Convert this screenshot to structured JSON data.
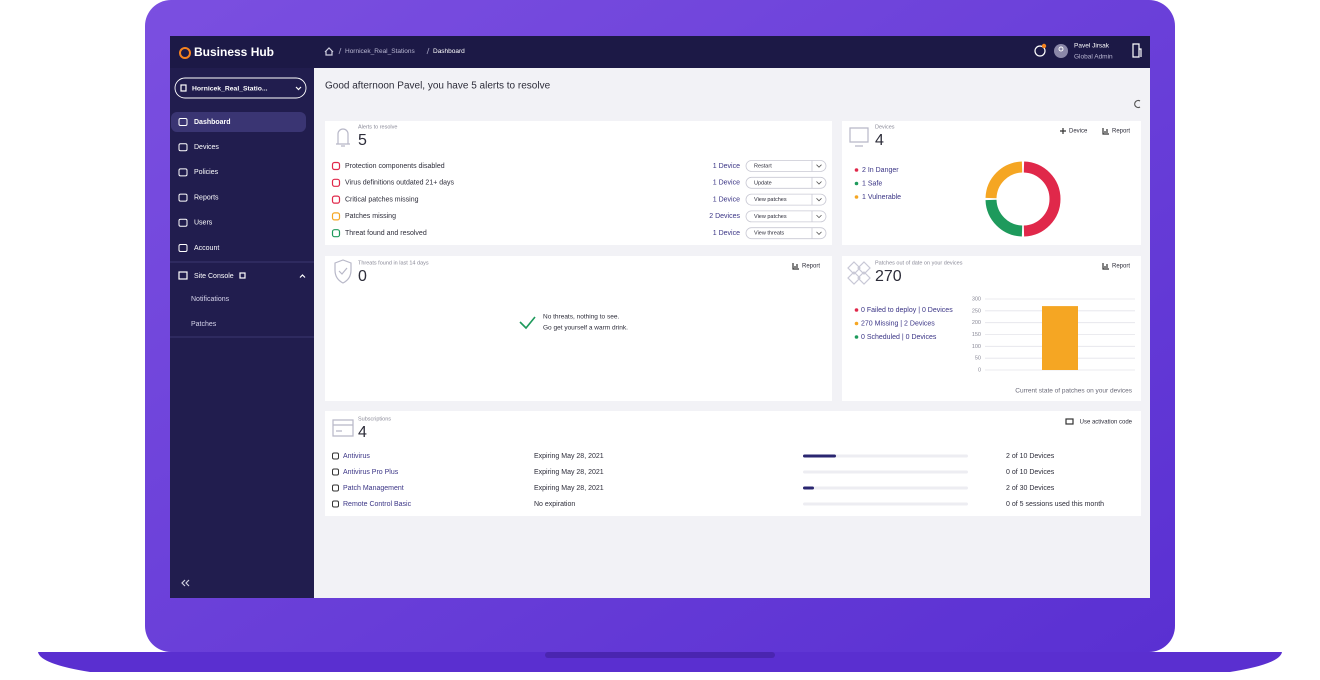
{
  "header": {
    "brand": "Business Hub",
    "breadcrumb": [
      "Hornicek_Real_Stations",
      "Dashboard"
    ],
    "user_name": "Pavel Jirsak",
    "user_role": "Global Admin"
  },
  "sidebar": {
    "site": "Hornicek_Real_Statio...",
    "nav": [
      "Dashboard",
      "Devices",
      "Policies",
      "Reports",
      "Users",
      "Account"
    ],
    "site_console": "Site Console",
    "sub_nav": [
      "Notifications",
      "Patches"
    ]
  },
  "greeting": "Good afternoon Pavel, you have 5 alerts to resolve",
  "alerts": {
    "label": "Alerts to resolve",
    "count": 5,
    "rows": [
      {
        "text": "Protection components disabled",
        "devices": "1 Device",
        "action": "Restart"
      },
      {
        "text": "Virus definitions outdated 21+ days",
        "devices": "1 Device",
        "action": "Update"
      },
      {
        "text": "Critical patches missing",
        "devices": "1 Device",
        "action": "View patches"
      },
      {
        "text": "Patches missing",
        "devices": "2 Devices",
        "action": "View patches"
      },
      {
        "text": "Threat found and resolved",
        "devices": "1 Device",
        "action": "View threats"
      }
    ]
  },
  "devices": {
    "label": "Devices",
    "count": 4,
    "add": "Device",
    "report": "Report"
  },
  "threats": {
    "label": "Threats found in last 14 days",
    "count": 0,
    "report": "Report",
    "message": [
      "No threats, nothing to see.",
      "Go get yourself a warm drink."
    ]
  },
  "patches": {
    "label": "Patches out of date on your devices",
    "count": 270,
    "report": "Report"
  },
  "subscriptions": {
    "label": "Subscriptions",
    "count": 4,
    "action": "Use activation code",
    "rows": [
      {
        "name": "Antivirus",
        "expiry": "Expiring May 28, 2021",
        "used": 2,
        "total": 10,
        "usage": "2 of 10 Devices"
      },
      {
        "name": "Antivirus Pro Plus",
        "expiry": "Expiring May 28, 2021",
        "used": 0,
        "total": 10,
        "usage": "0 of 10 Devices"
      },
      {
        "name": "Patch Management",
        "expiry": "Expiring May 28, 2021",
        "used": 2,
        "total": 30,
        "usage": "2 of 30 Devices"
      },
      {
        "name": "Remote Control Basic",
        "expiry": "No expiration",
        "used": 0,
        "total": 5,
        "usage": "0 of 5 sessions used this month"
      }
    ]
  },
  "chart_data": [
    {
      "type": "pie",
      "categories": [
        "In Danger",
        "Safe",
        "Vulnerable"
      ],
      "values": [
        2,
        1,
        1
      ],
      "colors": [
        "#e0284a",
        "#1e9a5c",
        "#f5a623"
      ],
      "legend_labels": [
        "2 In Danger",
        "1 Safe",
        "1 Vulnerable"
      ]
    },
    {
      "type": "bar",
      "stacked": true,
      "categories": [
        null
      ],
      "series": [
        {
          "name": "Failed to deploy",
          "color": "#e0284a",
          "values": [
            0
          ]
        },
        {
          "name": "Missing",
          "color": "#f5a623",
          "values": [
            270
          ]
        },
        {
          "name": "Scheduled",
          "color": "#1e9a5c",
          "values": [
            0
          ]
        }
      ],
      "legend_labels": [
        "0 Failed to deploy | 0 Devices",
        "270 Missing | 2 Devices",
        "0 Scheduled | 0 Devices"
      ],
      "ylim": [
        0,
        300
      ],
      "yticks": [
        0,
        50,
        100,
        150,
        200,
        250,
        300
      ],
      "grid": true,
      "x_label": "Current state of patches on your devices"
    }
  ]
}
